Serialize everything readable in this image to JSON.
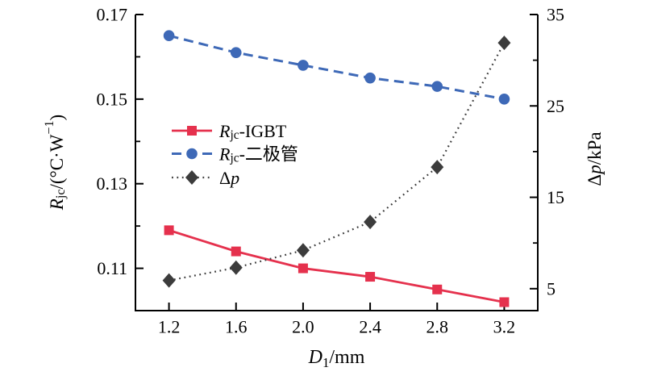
{
  "colors": {
    "background": "#ffffff",
    "axis": "#000000",
    "text": "#000000",
    "red": "#e5314d",
    "blue": "#3e69b7",
    "dark": "#3c3c3c"
  },
  "chart_data": {
    "type": "line",
    "title": "",
    "grid": false,
    "legend_position": "inside upper-left",
    "xlabel": "D1/mm",
    "ylabel_left": "Rjc/(°C·W−1)",
    "ylabel_right": "Δp/kPa",
    "xlabel_parts": [
      {
        "t": "D",
        "i": true
      },
      {
        "t": "1",
        "v": "sub"
      },
      {
        "t": "/mm"
      }
    ],
    "ylabel_left_parts": [
      {
        "t": "R",
        "i": true
      },
      {
        "t": "jc",
        "v": "sub"
      },
      {
        "t": "/(°C·W"
      },
      {
        "t": "−1",
        "v": "sup"
      },
      {
        "t": ")"
      }
    ],
    "ylabel_right_parts": [
      {
        "t": "Δ"
      },
      {
        "t": "p",
        "i": true
      },
      {
        "t": "/kPa"
      }
    ],
    "x": [
      1.2,
      1.6,
      2.0,
      2.4,
      2.8,
      3.2
    ],
    "xlim": [
      1.0,
      3.4
    ],
    "ylim_left": [
      0.1,
      0.17
    ],
    "ylim_right": [
      2.6,
      35
    ],
    "xticks": {
      "major": [
        1.2,
        1.6,
        2.0,
        2.4,
        2.8,
        3.2
      ],
      "labels": [
        "1.2",
        "1.6",
        "2.0",
        "2.4",
        "2.8",
        "3.2"
      ]
    },
    "yticks_left": {
      "major": [
        0.11,
        0.13,
        0.15,
        0.17
      ],
      "labels": [
        "0.11",
        "0.13",
        "0.15",
        "0.17"
      ],
      "minor": [
        0.12,
        0.14,
        0.16
      ]
    },
    "yticks_right": {
      "major": [
        5,
        15,
        25,
        35
      ],
      "labels": [
        "5",
        "15",
        "25",
        "35"
      ],
      "minor": [
        10,
        20,
        30
      ]
    },
    "series": [
      {
        "id": "rjc-igbt",
        "name": "Rjc-IGBT",
        "label_parts": [
          {
            "t": "R",
            "i": true
          },
          {
            "t": "jc",
            "v": "sub"
          },
          {
            "t": "-IGBT"
          }
        ],
        "axis": "left",
        "color": "#e5314d",
        "line": "solid",
        "marker": "square",
        "values": [
          0.119,
          0.114,
          0.11,
          0.108,
          0.105,
          0.102
        ]
      },
      {
        "id": "rjc-diode",
        "name": "Rjc-二极管",
        "label_parts": [
          {
            "t": "R",
            "i": true
          },
          {
            "t": "jc",
            "v": "sub"
          },
          {
            "t": "-二极管"
          }
        ],
        "axis": "left",
        "color": "#3e69b7",
        "line": "dashed",
        "marker": "circle",
        "values": [
          0.165,
          0.161,
          0.158,
          0.155,
          0.153,
          0.15
        ]
      },
      {
        "id": "delta-p",
        "name": "Δp",
        "label_parts": [
          {
            "t": "Δ"
          },
          {
            "t": "p",
            "i": true
          }
        ],
        "axis": "right",
        "color": "#3c3c3c",
        "line": "dotted",
        "marker": "diamond",
        "values": [
          5.9,
          7.3,
          9.2,
          12.3,
          18.3,
          31.9
        ]
      }
    ]
  }
}
